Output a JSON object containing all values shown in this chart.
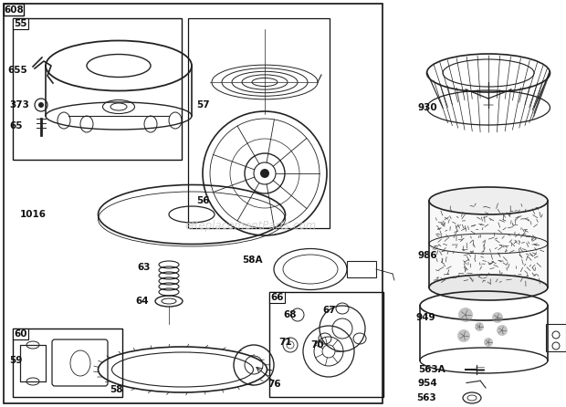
{
  "bg_color": "#ffffff",
  "watermark": "eReplacementParts.com",
  "text_color": "#111111",
  "lc": "#222222",
  "bc": "#111111"
}
